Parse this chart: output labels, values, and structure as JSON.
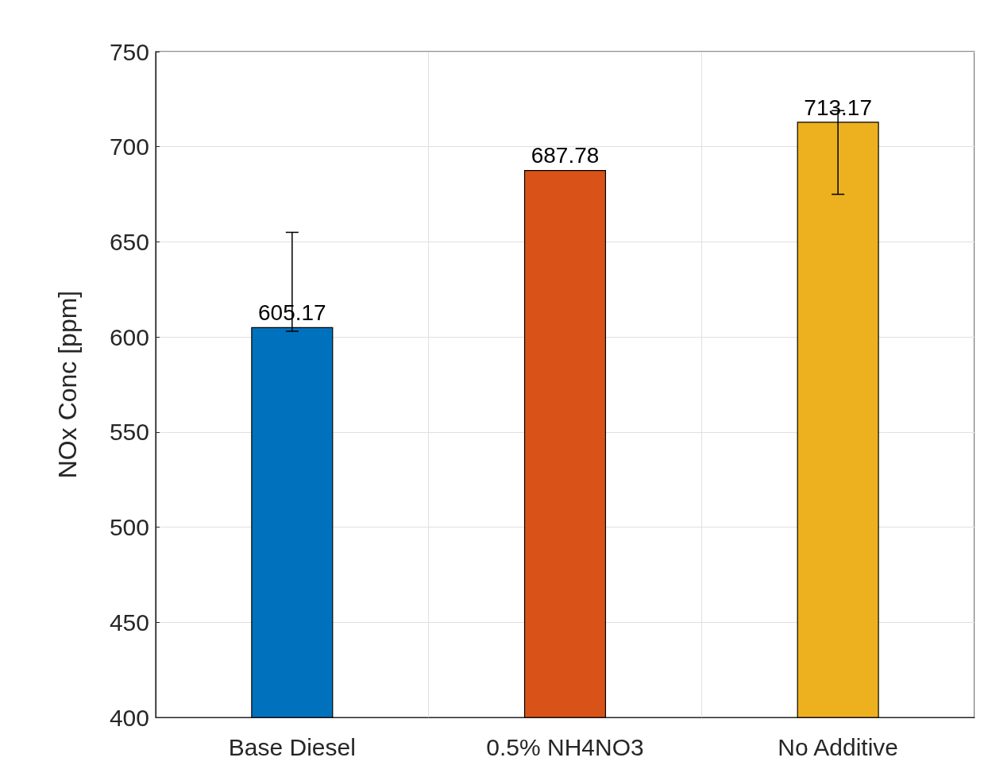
{
  "chart_data": {
    "type": "bar",
    "ylabel": "NOx Conc [ppm]",
    "categories": [
      "Base Diesel",
      "0.5% NH4NO3",
      "No Additive"
    ],
    "values": [
      605.17,
      687.78,
      713.17
    ],
    "colors": [
      "#0072bd",
      "#d95319",
      "#edb120"
    ],
    "errors": [
      [
        603,
        655
      ],
      null,
      [
        675,
        719
      ]
    ],
    "ylim": [
      400,
      750
    ],
    "yticks": [
      400,
      450,
      500,
      550,
      600,
      650,
      700,
      750
    ],
    "grid": true,
    "data_labels": true
  }
}
